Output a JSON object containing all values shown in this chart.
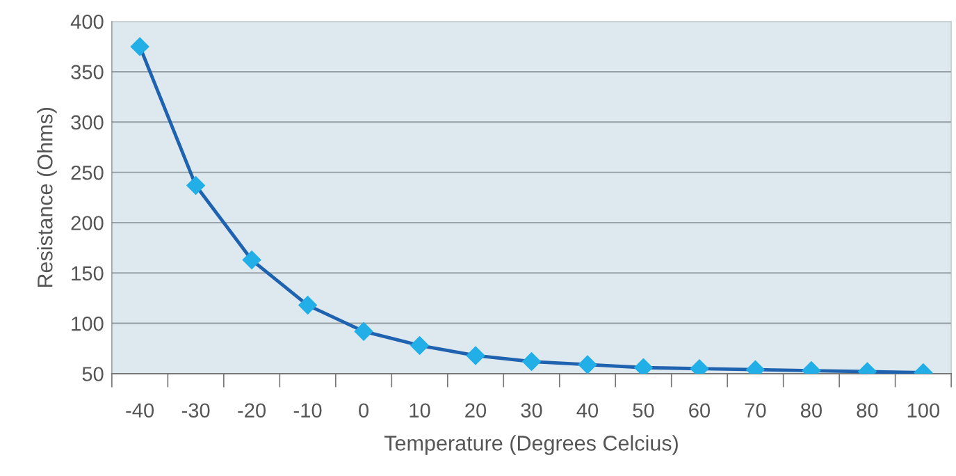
{
  "chart_data": {
    "type": "line",
    "xlabel": "Temperature (Degrees Celcius)",
    "ylabel": "Resistance (Ohms)",
    "categories": [
      "-40",
      "-30",
      "-20",
      "-10",
      "0",
      "10",
      "20",
      "30",
      "40",
      "50",
      "60",
      "70",
      "80",
      "80",
      "100"
    ],
    "series": [
      {
        "color": "#1f62b0",
        "values": [
          375,
          237,
          163,
          118,
          92,
          78,
          68,
          62,
          59,
          56,
          55,
          54,
          53,
          52,
          51
        ]
      }
    ],
    "ylim": [
      50,
      400
    ],
    "yticks": [
      50,
      100,
      150,
      200,
      250,
      300,
      350,
      400
    ],
    "grid": "y",
    "marker": "diamond",
    "line_style": "solid"
  }
}
